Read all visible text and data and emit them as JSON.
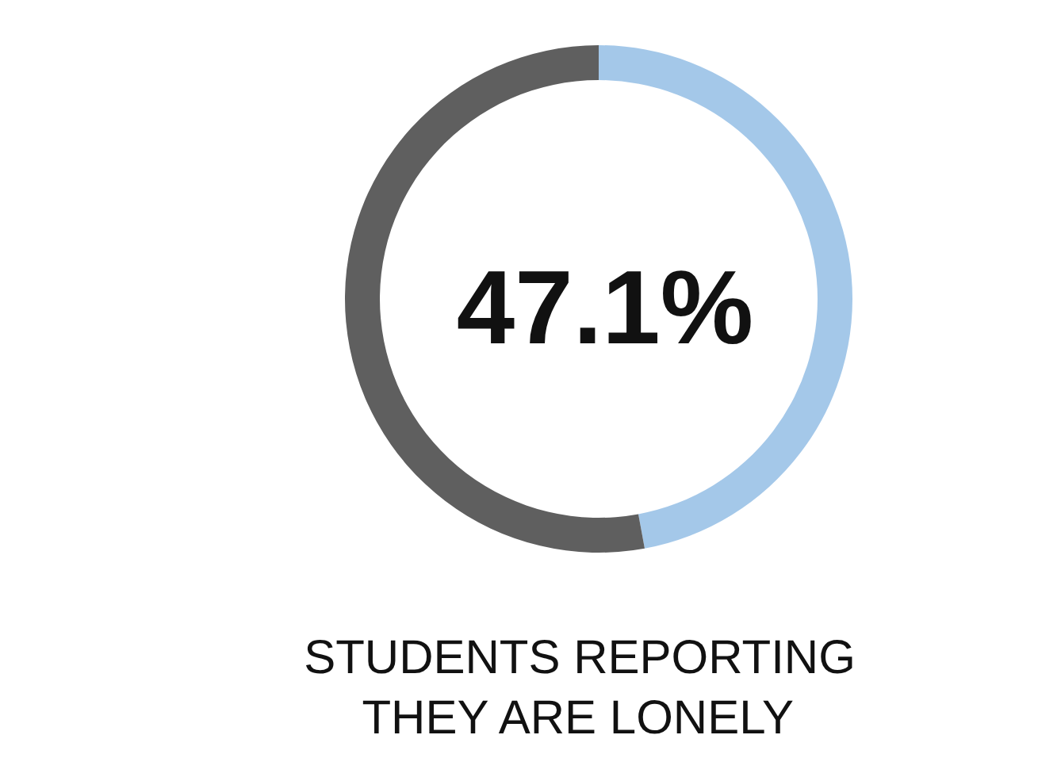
{
  "chart_data": {
    "type": "donut",
    "title": "STUDENTS REPORTING THEY ARE LONELY",
    "categories": [
      null,
      null
    ],
    "values": [
      47.1,
      52.9
    ],
    "colors": [
      "#9fc5e8",
      "#5f5f5f"
    ],
    "value_labels": [
      "47.1%",
      null
    ]
  }
}
